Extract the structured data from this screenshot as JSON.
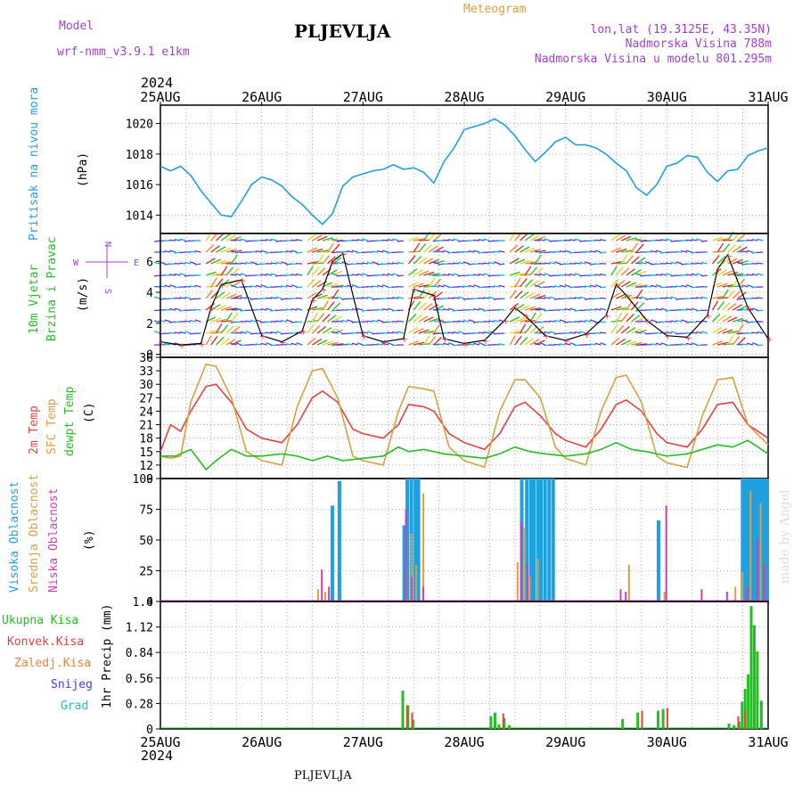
{
  "header": {
    "model_label": "Model",
    "model_name": "wrf-nmm_v3.9.1 e1km",
    "station": "PLJEVLJA",
    "product": "Meteogram",
    "coords": "lon,lat (19.3125E, 43.35N)",
    "elevation": "Nadmorska Visina 788m",
    "model_elevation": "Nadmorska Visina u modelu 801.295m",
    "year_top": "2024",
    "year_bottom": "2024",
    "footer_station": "PLJEVLJA",
    "credit": "made by Angel"
  },
  "colors": {
    "pressure": "#1fa0e0",
    "wind_label": "#20c020",
    "t2m": "#e84040",
    "tsfc": "#d8a040",
    "dewpt": "#20c020",
    "cloud_high": "#1fa0e0",
    "cloud_mid": "#d8a040",
    "cloud_low": "#d040b0",
    "precip_total": "#20c020",
    "precip_conv": "#e84040",
    "precip_grid": "#f08030",
    "precip_snow": "#4040e0",
    "precip_hail": "#20c0c0",
    "axis_purple": "#a040d0"
  },
  "chart_data": [
    {
      "id": "pressure",
      "type": "line",
      "ylabel": "Pritisak na nivou mora",
      "unit": "(hPa)",
      "ylim": [
        1012.8,
        1021.2
      ],
      "yticks": [
        1014,
        1016,
        1018,
        1020
      ],
      "x_dates": [
        "25AUG",
        "26AUG",
        "27AUG",
        "28AUG",
        "29AUG",
        "30AUG",
        "31AUG"
      ],
      "series": [
        {
          "x": [
            0,
            0.1,
            0.2,
            0.3,
            0.4,
            0.5,
            0.6,
            0.7,
            0.8,
            0.9,
            1.0,
            1.1,
            1.2,
            1.3,
            1.4,
            1.5,
            1.6,
            1.7,
            1.8,
            1.9,
            2.0,
            2.1,
            2.2,
            2.3,
            2.4,
            2.5,
            2.6,
            2.7,
            2.8,
            2.9,
            3.0,
            3.1,
            3.2,
            3.3,
            3.4,
            3.5,
            3.6,
            3.7,
            3.8,
            3.9,
            4.0,
            4.1,
            4.2,
            4.3,
            4.4,
            4.5,
            4.6,
            4.7,
            4.8,
            4.9,
            5.0,
            5.1,
            5.2,
            5.3,
            5.4,
            5.5,
            5.6,
            5.7,
            5.8,
            5.9,
            6.0
          ],
          "values": [
            1017.2,
            1016.9,
            1017.2,
            1016.6,
            1015.6,
            1014.8,
            1014.0,
            1013.9,
            1014.9,
            1016.0,
            1016.5,
            1016.3,
            1015.9,
            1015.2,
            1014.7,
            1014.0,
            1013.4,
            1014.1,
            1015.9,
            1016.5,
            1016.7,
            1016.9,
            1017.0,
            1017.3,
            1017.0,
            1017.1,
            1016.8,
            1016.1,
            1017.5,
            1018.4,
            1019.6,
            1019.8,
            1020.0,
            1020.3,
            1019.9,
            1019.2,
            1018.3,
            1017.5,
            1018.1,
            1018.8,
            1019.1,
            1018.6,
            1018.6,
            1018.4,
            1018.0,
            1017.4,
            1016.9,
            1015.8,
            1015.3,
            1016.0,
            1017.2,
            1017.4,
            1017.9,
            1017.8,
            1016.8,
            1016.2,
            1016.9,
            1017.0,
            1017.9,
            1018.2,
            1018.4
          ]
        }
      ]
    },
    {
      "id": "wind",
      "type": "line",
      "ylabel": "10m Vjetar Brzina i Pravac",
      "unit": "(m/s)",
      "ylim": [
        -0.2,
        7.8
      ],
      "yticks": [
        0,
        2,
        4,
        6
      ],
      "x_dates": [
        "25AUG",
        "26AUG",
        "27AUG",
        "28AUG",
        "29AUG",
        "30AUG",
        "31AUG"
      ],
      "compass": {
        "north": "N",
        "south": "S",
        "west": "W",
        "east": "E"
      },
      "series": [
        {
          "x": [
            0,
            0.2,
            0.4,
            0.5,
            0.6,
            0.8,
            1.0,
            1.2,
            1.4,
            1.5,
            1.6,
            1.7,
            1.8,
            2.0,
            2.2,
            2.4,
            2.5,
            2.7,
            2.8,
            3.0,
            3.2,
            3.4,
            3.5,
            3.6,
            3.8,
            4.0,
            4.2,
            4.4,
            4.5,
            4.6,
            4.8,
            5.0,
            5.2,
            5.4,
            5.5,
            5.6,
            5.8,
            6.0
          ],
          "values": [
            0.8,
            0.6,
            0.7,
            3.0,
            4.5,
            4.8,
            1.2,
            0.8,
            1.5,
            3.5,
            4.2,
            6.0,
            6.5,
            1.2,
            0.8,
            1.0,
            4.2,
            3.8,
            1.0,
            0.7,
            0.9,
            2.2,
            3.0,
            2.5,
            1.2,
            0.9,
            1.3,
            2.5,
            4.5,
            3.8,
            2.2,
            1.2,
            1.1,
            2.5,
            5.5,
            6.4,
            3.0,
            1.0
          ]
        }
      ]
    },
    {
      "id": "temperature",
      "type": "line",
      "ylabel": "2m Temp / SFC Temp / dewpt Temp",
      "unit": "(C)",
      "ylim": [
        9,
        36
      ],
      "yticks": [
        9,
        12,
        15,
        18,
        21,
        24,
        27,
        30,
        33,
        36
      ],
      "x_dates": [
        "25AUG",
        "26AUG",
        "27AUG",
        "28AUG",
        "29AUG",
        "30AUG",
        "31AUG"
      ],
      "series": [
        {
          "name": "2m Temp",
          "x": [
            0,
            0.1,
            0.2,
            0.3,
            0.45,
            0.55,
            0.7,
            0.85,
            1.0,
            1.2,
            1.35,
            1.5,
            1.6,
            1.75,
            1.9,
            2.0,
            2.2,
            2.35,
            2.45,
            2.6,
            2.7,
            2.85,
            3.0,
            3.2,
            3.35,
            3.5,
            3.6,
            3.75,
            3.9,
            4.0,
            4.2,
            4.35,
            4.5,
            4.6,
            4.75,
            4.9,
            5.0,
            5.2,
            5.35,
            5.5,
            5.65,
            5.8,
            6.0
          ],
          "values": [
            15,
            21,
            19.5,
            24,
            29.5,
            30,
            26,
            20,
            18,
            17,
            21,
            27,
            28.5,
            26,
            20,
            19,
            18,
            21,
            25.5,
            25,
            24,
            19,
            17,
            15.5,
            19,
            25,
            26,
            23,
            19,
            17.5,
            16,
            20,
            25.5,
            26.5,
            24,
            19,
            17,
            16,
            20,
            25.5,
            26,
            21,
            18
          ]
        },
        {
          "name": "SFC Temp",
          "x": [
            0,
            0.1,
            0.2,
            0.3,
            0.45,
            0.55,
            0.7,
            0.85,
            1.0,
            1.2,
            1.35,
            1.5,
            1.6,
            1.75,
            1.9,
            2.0,
            2.2,
            2.35,
            2.45,
            2.6,
            2.7,
            2.85,
            3.0,
            3.2,
            3.35,
            3.5,
            3.6,
            3.75,
            3.9,
            4.0,
            4.2,
            4.35,
            4.5,
            4.6,
            4.75,
            4.9,
            5.0,
            5.2,
            5.35,
            5.5,
            5.65,
            5.8,
            6.0
          ],
          "values": [
            14,
            13.5,
            14,
            26,
            34.5,
            34,
            27,
            15,
            13,
            12,
            25,
            33,
            33.5,
            27,
            14,
            13,
            12,
            24,
            29.5,
            29,
            28.5,
            16,
            13,
            11.5,
            24,
            31,
            31,
            27,
            16,
            13.5,
            12,
            24,
            31.5,
            32,
            26,
            14,
            12.5,
            11.5,
            23,
            31,
            31.5,
            21,
            16.5
          ]
        },
        {
          "name": "dewpt Temp",
          "x": [
            0,
            0.15,
            0.3,
            0.45,
            0.55,
            0.7,
            0.85,
            1.0,
            1.2,
            1.35,
            1.5,
            1.65,
            1.8,
            2.0,
            2.2,
            2.35,
            2.45,
            2.6,
            2.8,
            3.0,
            3.2,
            3.35,
            3.5,
            3.65,
            3.8,
            4.0,
            4.2,
            4.35,
            4.5,
            4.65,
            4.8,
            5.0,
            5.2,
            5.35,
            5.5,
            5.65,
            5.8,
            6.0
          ],
          "values": [
            14,
            14,
            15.5,
            11,
            13,
            15.5,
            14,
            14,
            14.5,
            14,
            13,
            14,
            13,
            13.5,
            14,
            16,
            15,
            15.5,
            14.5,
            14,
            13.5,
            14.5,
            16,
            15,
            14.5,
            14,
            14.5,
            15.5,
            17,
            15.5,
            15,
            14,
            14.5,
            15.5,
            16.5,
            16,
            17.5,
            14.5
          ]
        }
      ]
    },
    {
      "id": "clouds",
      "type": "bar",
      "ylabel": "Visoka Oblacnost / Srednja Oblacnost / Niska Oblacnost",
      "unit": "(%)",
      "ylim": [
        0,
        100
      ],
      "yticks": [
        0,
        25,
        50,
        75,
        100
      ],
      "x_dates": [
        "25AUG",
        "26AUG",
        "27AUG",
        "28AUG",
        "29AUG",
        "30AUG",
        "31AUG"
      ],
      "series": [
        {
          "name": "Visoka Oblacnost",
          "x": [
            1.68,
            1.75,
            2.39,
            2.42,
            2.46,
            2.5,
            2.53,
            3.55,
            3.6,
            3.64,
            3.67,
            3.71,
            3.74,
            3.78,
            3.82,
            3.86,
            4.9,
            5.73,
            5.76,
            5.79,
            5.82,
            5.85,
            5.88,
            5.91,
            5.94,
            5.97
          ],
          "values": [
            78,
            98,
            62,
            100,
            100,
            100,
            100,
            100,
            100,
            100,
            100,
            100,
            100,
            100,
            100,
            100,
            66,
            100,
            100,
            100,
            100,
            100,
            100,
            100,
            100,
            100
          ]
        },
        {
          "name": "Srednja Oblacnost",
          "x": [
            1.53,
            1.6,
            2.4,
            2.45,
            2.5,
            2.57,
            3.5,
            3.57,
            3.62,
            3.7,
            4.6,
            4.95,
            5.65,
            5.72,
            5.8,
            5.9
          ],
          "values": [
            10,
            8,
            28,
            55,
            30,
            88,
            32,
            60,
            20,
            35,
            30,
            8,
            12,
            24,
            90,
            80
          ]
        },
        {
          "name": "Niska Oblacnost",
          "x": [
            1.55,
            1.62,
            2.38,
            2.44,
            2.55,
            3.52,
            3.58,
            4.5,
            4.55,
            4.95,
            5.3,
            5.55,
            5.75,
            5.85,
            5.92
          ],
          "values": [
            26,
            12,
            75,
            20,
            12,
            65,
            30,
            10,
            8,
            78,
            10,
            8,
            12,
            50,
            30
          ]
        }
      ]
    },
    {
      "id": "precip",
      "type": "bar",
      "ylabel": "1hr Precip",
      "unit": "(mm)",
      "ylim": [
        0,
        1.4
      ],
      "yticks": [
        0,
        0.28,
        0.56,
        0.84,
        1.12,
        1.4
      ],
      "x_dates": [
        "25AUG",
        "26AUG",
        "27AUG",
        "28AUG",
        "29AUG",
        "30AUG",
        "31AUG"
      ],
      "legend": [
        "Ukupna Kisa",
        "Konvek.Kisa",
        "Zaledj.Kisa",
        "Snijeg",
        "Grad"
      ],
      "series": [
        {
          "name": "Ukupna Kisa",
          "x": [
            2.38,
            2.43,
            2.48,
            3.25,
            3.29,
            3.33,
            3.38,
            3.43,
            4.55,
            4.7,
            4.9,
            4.95,
            5.6,
            5.65,
            5.7,
            5.73,
            5.76,
            5.79,
            5.82,
            5.85,
            5.88,
            5.92
          ],
          "values": [
            0.42,
            0.26,
            0.1,
            0.14,
            0.18,
            0.05,
            0.12,
            0.04,
            0.11,
            0.18,
            0.2,
            0.22,
            0.06,
            0.04,
            0.08,
            0.3,
            0.44,
            0.6,
            1.35,
            1.14,
            0.85,
            0.31
          ]
        },
        {
          "name": "Konvek.Kisa",
          "x": [
            2.4,
            2.45,
            3.35,
            4.72,
            4.97,
            5.67,
            5.74
          ],
          "values": [
            0.26,
            0.18,
            0.17,
            0.2,
            0.23,
            0.14,
            0.2
          ]
        }
      ]
    }
  ]
}
